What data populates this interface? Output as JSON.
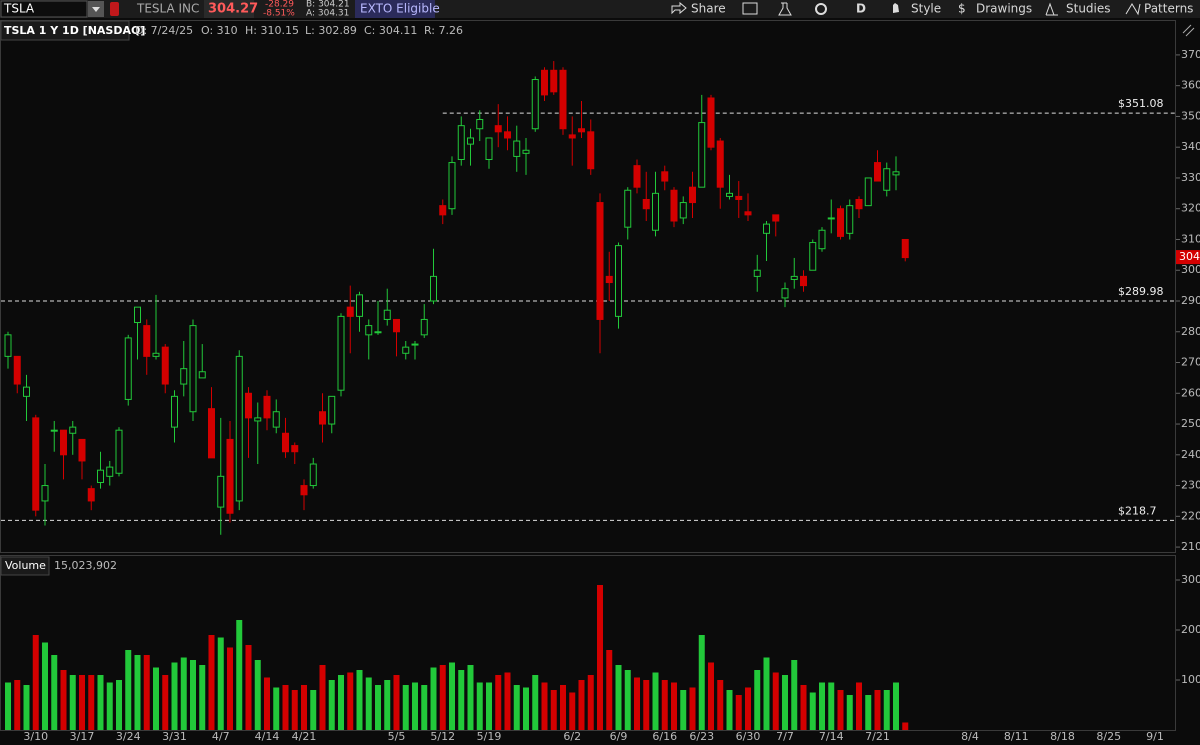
{
  "toolbar": {
    "symbol": "TSLA",
    "company": "TESLA INC",
    "last": "304.27",
    "change": "-28.29",
    "change_pct": "-8.51%",
    "bid": "B: 304.21",
    "ask": "A: 304.31",
    "badge": "EXTO Eligible",
    "buttons": {
      "share": "Share",
      "aggregation": "D",
      "style": "Style",
      "drawings": "Drawings",
      "studies": "Studies",
      "patterns": "Patterns"
    }
  },
  "header": {
    "symbol": "TSLA 1 Y 1D [NASDAQ]",
    "date": "D: 7/24/25",
    "open": "O: 310",
    "high": "H: 310.15",
    "low": "L: 302.89",
    "close": "C: 304.11",
    "range": "R: 7.26"
  },
  "chart_data": [
    {
      "type": "candlestick",
      "up_color": "#22c93a",
      "down_color": "#d40000",
      "open": [
        272,
        272,
        259,
        252,
        225,
        248,
        248,
        247,
        245,
        229,
        231,
        233,
        234,
        258,
        283,
        282,
        272,
        275,
        249,
        263,
        254,
        265,
        255,
        223,
        245,
        225,
        260,
        251,
        259,
        249,
        247,
        243,
        230,
        230,
        254,
        250,
        261,
        288,
        285,
        279,
        280,
        284,
        284,
        273,
        276,
        279,
        290,
        321,
        320,
        336,
        341,
        346,
        336,
        347,
        345,
        337,
        338,
        346,
        365,
        365,
        365,
        344,
        346,
        345,
        322,
        298,
        285,
        314,
        334,
        323,
        313,
        332,
        326,
        317,
        327,
        327,
        356,
        342,
        324,
        324,
        319,
        298,
        312,
        318,
        291,
        297,
        298,
        300,
        307,
        317,
        320,
        312,
        323,
        321,
        335,
        326,
        331,
        310
      ],
      "high": [
        280,
        272,
        266,
        253,
        237,
        251,
        248,
        251,
        245,
        230,
        241,
        238,
        249,
        279,
        288,
        284,
        292,
        276,
        261,
        277,
        284,
        276,
        262,
        252,
        251,
        274,
        262,
        257,
        261,
        258,
        252,
        244,
        232,
        239,
        260,
        259,
        286,
        295,
        293,
        284,
        290,
        294,
        284,
        277,
        277,
        289,
        307,
        323,
        337,
        350,
        346,
        352,
        343,
        354,
        350,
        347,
        343,
        363,
        366,
        368,
        366,
        350,
        355,
        349,
        325,
        306,
        309,
        327,
        336,
        332,
        332,
        334,
        327,
        324,
        332,
        357,
        357,
        343,
        331,
        329,
        325,
        305,
        316,
        318,
        296,
        304,
        300,
        310,
        314,
        323,
        321,
        323,
        324,
        330,
        339,
        335,
        337,
        310.15
      ],
      "low": [
        268,
        260,
        251,
        220,
        217,
        241,
        232,
        240,
        232,
        222,
        229,
        230,
        233,
        256,
        271,
        266,
        271,
        260,
        244,
        259,
        251,
        265,
        239,
        214,
        218,
        222,
        239,
        237,
        248,
        247,
        239,
        237,
        222,
        229,
        244,
        247,
        259,
        273,
        280,
        271,
        279,
        282,
        272,
        271,
        271,
        278,
        289,
        315,
        318,
        334,
        334,
        342,
        333,
        340,
        339,
        332,
        331,
        345,
        355,
        357,
        344,
        334,
        343,
        331,
        273,
        290,
        281,
        310,
        325,
        316,
        311,
        326,
        314,
        315,
        317,
        327,
        339,
        320,
        323,
        317,
        316,
        293,
        303,
        311,
        288,
        294,
        293,
        300,
        306,
        312,
        310,
        310,
        317,
        321,
        329,
        324,
        326,
        302.89
      ],
      "close": [
        279,
        263,
        262,
        222,
        230,
        248,
        240,
        249,
        238,
        225,
        235,
        236,
        248,
        278,
        288,
        272,
        273,
        263,
        259,
        268,
        282,
        267,
        239,
        233,
        221,
        272,
        252,
        252,
        252,
        254,
        241,
        241,
        227,
        237,
        250,
        259,
        285,
        285,
        292,
        282,
        280,
        287,
        280,
        275,
        276,
        284,
        298,
        318,
        335,
        347,
        343,
        349,
        343,
        345,
        343,
        342,
        339,
        362,
        357,
        358,
        346,
        343,
        345,
        333,
        284,
        296,
        308,
        326,
        327,
        320,
        325,
        329,
        316,
        322,
        322,
        348,
        340,
        327,
        325,
        323,
        318,
        300,
        315,
        316,
        294,
        298,
        295,
        309,
        313,
        317,
        311,
        321,
        320,
        330,
        329,
        333,
        332,
        304.11
      ],
      "ylim": [
        208.4,
        380.7
      ],
      "yticks": [
        210,
        220,
        230,
        240,
        250,
        260,
        270,
        280,
        290,
        300,
        310,
        320,
        330,
        340,
        350,
        360,
        370
      ],
      "levels": [
        {
          "value": 351.08,
          "label": "$351.08"
        },
        {
          "value": 289.98,
          "label": "$289.98"
        },
        {
          "value": 218.7,
          "label": "$218.7"
        }
      ],
      "last_price": {
        "value": 304.27,
        "label": "304"
      }
    },
    {
      "type": "bar",
      "title": "Volume",
      "value_label": "15,023,902",
      "categories": [
        null,
        null,
        null,
        "3/10",
        null,
        null,
        null,
        null,
        "3/17",
        null,
        null,
        null,
        null,
        "3/24",
        null,
        null,
        null,
        null,
        "3/31",
        null,
        null,
        null,
        null,
        "4/7",
        null,
        null,
        null,
        null,
        "4/14",
        null,
        null,
        null,
        "4/21",
        null,
        null,
        null,
        null,
        null,
        null,
        null,
        null,
        null,
        "5/5",
        null,
        null,
        null,
        null,
        "5/12",
        null,
        null,
        null,
        null,
        "5/19",
        null,
        null,
        null,
        null,
        null,
        null,
        null,
        null,
        "6/2",
        null,
        null,
        null,
        null,
        "6/9",
        null,
        null,
        null,
        null,
        "6/16",
        null,
        null,
        null,
        "6/23",
        null,
        null,
        null,
        null,
        "6/30",
        null,
        null,
        null,
        "7/7",
        null,
        null,
        null,
        null,
        "7/14",
        null,
        null,
        null,
        null,
        "7/21",
        null,
        null,
        null,
        null,
        null,
        null,
        null,
        null,
        null,
        "8/4",
        null,
        null,
        null,
        null,
        "8/11",
        null,
        null,
        null,
        null,
        "8/18",
        null,
        null,
        null,
        null,
        "8/25",
        null,
        null,
        null,
        null,
        "9/1"
      ],
      "values": [
        95,
        100,
        90,
        190,
        175,
        150,
        120,
        110,
        110,
        110,
        110,
        95,
        100,
        160,
        150,
        150,
        125,
        110,
        135,
        145,
        140,
        130,
        190,
        185,
        165,
        220,
        170,
        140,
        105,
        85,
        90,
        80,
        90,
        80,
        130,
        100,
        110,
        115,
        120,
        105,
        90,
        100,
        110,
        90,
        95,
        90,
        125,
        130,
        135,
        120,
        130,
        95,
        95,
        110,
        115,
        90,
        85,
        110,
        95,
        80,
        90,
        75,
        100,
        110,
        290,
        160,
        130,
        120,
        105,
        100,
        115,
        100,
        95,
        80,
        85,
        190,
        135,
        100,
        80,
        70,
        85,
        120,
        145,
        115,
        110,
        140,
        90,
        75,
        95,
        95,
        80,
        70,
        95,
        70,
        80,
        80,
        95,
        15,
        null,
        null,
        null,
        null,
        null,
        null,
        null,
        null,
        null,
        null,
        null,
        null,
        null,
        null,
        null,
        null,
        null,
        null,
        null,
        null,
        null,
        null,
        null,
        null,
        null,
        null,
        null
      ],
      "ylim": [
        0,
        348
      ],
      "yticks": [
        100,
        200,
        300
      ]
    }
  ]
}
